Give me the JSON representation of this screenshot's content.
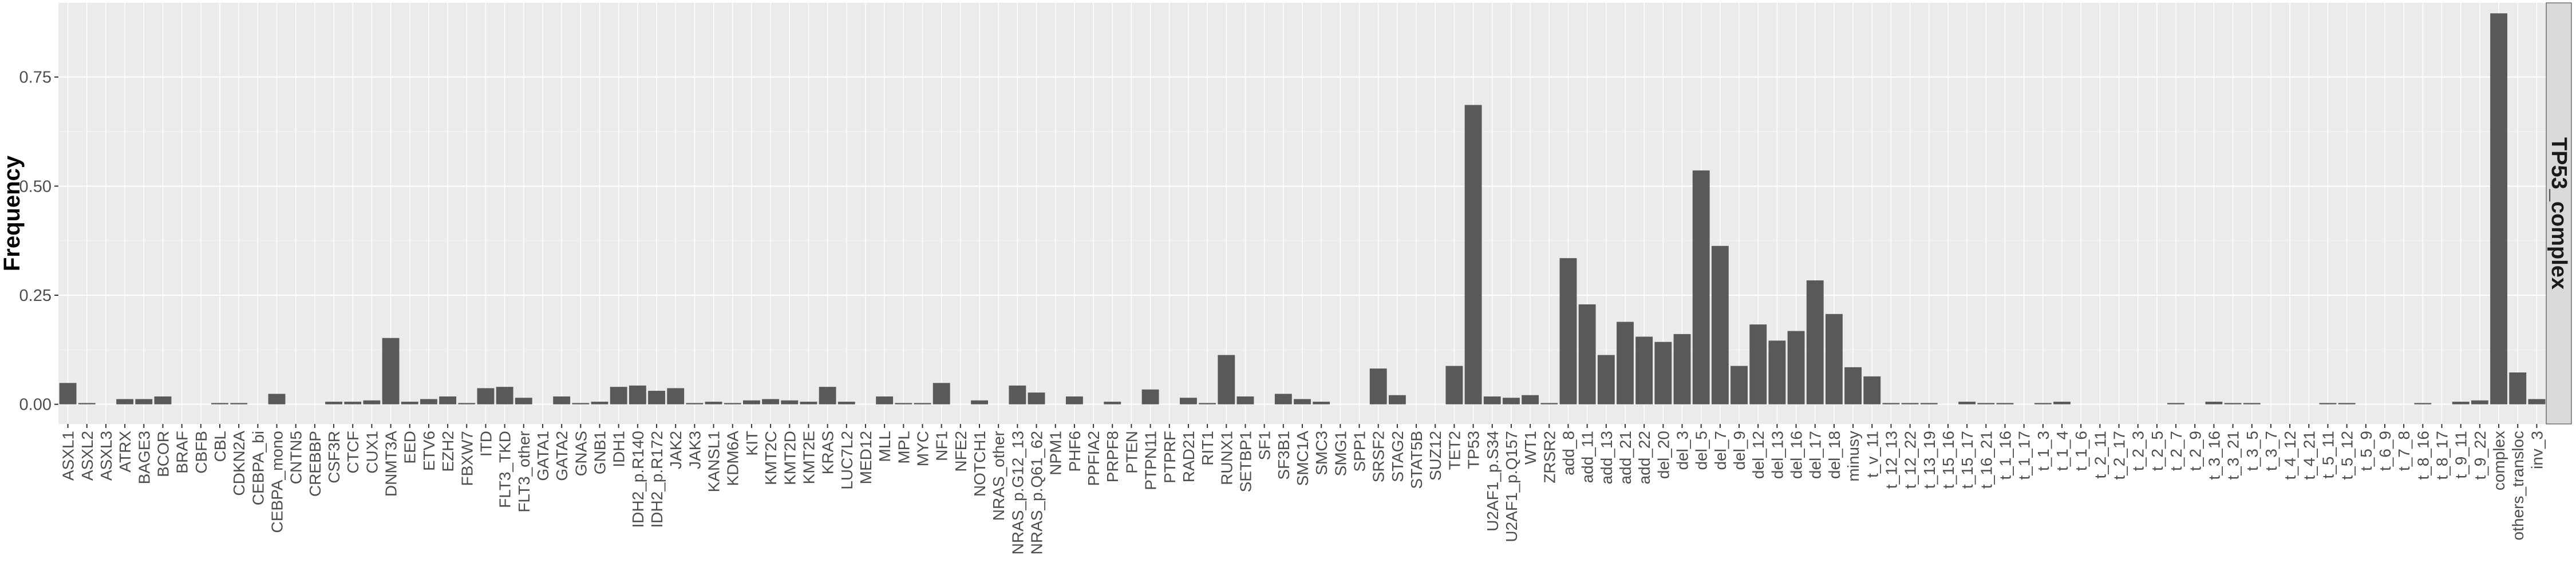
{
  "chart_data": {
    "type": "bar",
    "title": "",
    "xlabel": "",
    "ylabel": "Frequency",
    "facet_label": "TP53_complex",
    "ylim": [
      -0.045,
      0.92
    ],
    "yticks": [
      0.0,
      0.25,
      0.5,
      0.75
    ],
    "ytick_labels": [
      "0.00",
      "0.25",
      "0.50",
      "0.75"
    ],
    "grid": true,
    "colors": {
      "bar": "#595959",
      "panel": "#ebebeb",
      "grid_major": "#ffffff",
      "strip": "#d9d9d9",
      "text": "#000000",
      "tick_text": "#4d4d4d"
    },
    "categories": [
      "ASXL1",
      "ASXL2",
      "ASXL3",
      "ATRX",
      "BAGE3",
      "BCOR",
      "BRAF",
      "CBFB",
      "CBL",
      "CDKN2A",
      "CEBPA_bi",
      "CEBPA_mono",
      "CNTN5",
      "CREBBP",
      "CSF3R",
      "CTCF",
      "CUX1",
      "DNMT3A",
      "EED",
      "ETV6",
      "EZH2",
      "FBXW7",
      "ITD",
      "FLT3_TKD",
      "FLT3_other",
      "GATA1",
      "GATA2",
      "GNAS",
      "GNB1",
      "IDH1",
      "IDH2_p.R140",
      "IDH2_p.R172",
      "JAK2",
      "JAK3",
      "KANSL1",
      "KDM6A",
      "KIT",
      "KMT2C",
      "KMT2D",
      "KMT2E",
      "KRAS",
      "LUC7L2",
      "MED12",
      "MLL",
      "MPL",
      "MYC",
      "NF1",
      "NFE2",
      "NOTCH1",
      "NRAS_other",
      "NRAS_p.G12_13",
      "NRAS_p.Q61_62",
      "NPM1",
      "PHF6",
      "PPFIA2",
      "PRPF8",
      "PTEN",
      "PTPN11",
      "PTPRF",
      "RAD21",
      "RIT1",
      "RUNX1",
      "SETBP1",
      "SF1",
      "SF3B1",
      "SMC1A",
      "SMC3",
      "SMG1",
      "SPP1",
      "SRSF2",
      "STAG2",
      "STAT5B",
      "SUZ12",
      "TET2",
      "TP53",
      "U2AF1_p.S34",
      "U2AF1_p.Q157",
      "WT1",
      "ZRSR2",
      "add_8",
      "add_11",
      "add_13",
      "add_21",
      "add_22",
      "del_20",
      "del_3",
      "del_5",
      "del_7",
      "del_9",
      "del_12",
      "del_13",
      "del_16",
      "del_17",
      "del_18",
      "minusy",
      "t_v_11",
      "t_12_13",
      "t_12_22",
      "t_13_19",
      "t_15_16",
      "t_15_17",
      "t_16_21",
      "t_1_16",
      "t_1_17",
      "t_1_3",
      "t_1_4",
      "t_1_6",
      "t_2_11",
      "t_2_17",
      "t_2_3",
      "t_2_5",
      "t_2_7",
      "t_2_9",
      "t_3_16",
      "t_3_21",
      "t_3_5",
      "t_3_7",
      "t_4_12",
      "t_4_21",
      "t_5_11",
      "t_5_12",
      "t_5_9",
      "t_6_9",
      "t_7_8",
      "t_8_16",
      "t_8_17",
      "t_9_11",
      "t_9_22",
      "complex",
      "others_transloc",
      "inv_3"
    ],
    "values": [
      0.049,
      0.003,
      0.0,
      0.012,
      0.012,
      0.018,
      0.0,
      0.0,
      0.003,
      0.003,
      0.0,
      0.024,
      0.0,
      0.0,
      0.006,
      0.006,
      0.009,
      0.152,
      0.006,
      0.012,
      0.018,
      0.003,
      0.037,
      0.04,
      0.015,
      0.0,
      0.018,
      0.003,
      0.006,
      0.04,
      0.043,
      0.031,
      0.037,
      0.003,
      0.006,
      0.003,
      0.009,
      0.012,
      0.009,
      0.006,
      0.04,
      0.006,
      0.0,
      0.018,
      0.003,
      0.003,
      0.049,
      0.0,
      0.009,
      0.0,
      0.043,
      0.027,
      0.0,
      0.018,
      0.0,
      0.006,
      0.0,
      0.034,
      0.0,
      0.015,
      0.003,
      0.113,
      0.018,
      0.0,
      0.024,
      0.012,
      0.006,
      0.0,
      0.0,
      0.082,
      0.021,
      0.0,
      0.0,
      0.088,
      0.686,
      0.018,
      0.015,
      0.021,
      0.003,
      0.335,
      0.229,
      0.113,
      0.189,
      0.155,
      0.143,
      0.161,
      0.536,
      0.363,
      0.088,
      0.183,
      0.146,
      0.168,
      0.284,
      0.207,
      0.085,
      0.064,
      0.003,
      0.003,
      0.003,
      0.0,
      0.006,
      0.003,
      0.003,
      0.0,
      0.003,
      0.006,
      0.0,
      0.0,
      0.0,
      0.0,
      0.0,
      0.003,
      0.0,
      0.006,
      0.003,
      0.003,
      0.0,
      0.0,
      0.0,
      0.003,
      0.003,
      0.0,
      0.0,
      0.0,
      0.003,
      0.0,
      0.006,
      0.009,
      0.896,
      0.073,
      0.012
    ]
  }
}
